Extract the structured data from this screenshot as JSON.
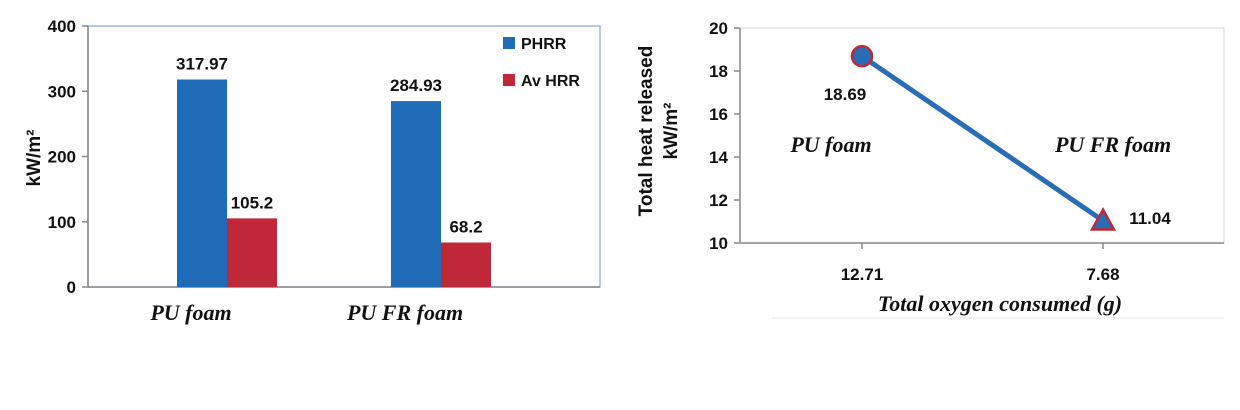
{
  "chart_data": [
    {
      "type": "bar",
      "categories": [
        "PU foam",
        "PU FR foam"
      ],
      "series": [
        {
          "name": "PHRR",
          "values": [
            317.97,
            284.93
          ],
          "color": "#1f6bb8"
        },
        {
          "name": "Av HRR",
          "values": [
            105.2,
            68.2
          ],
          "color": "#c0283a"
        }
      ],
      "data_labels": [
        [
          "317.97",
          "284.93"
        ],
        [
          "105.2",
          "68.2"
        ]
      ],
      "ylabel": "kW/m²",
      "ylim": [
        0,
        400
      ],
      "yticks": [
        0,
        100,
        200,
        300,
        400
      ],
      "grid": false,
      "legend_position": "top-right"
    },
    {
      "type": "line",
      "x": [
        "12.71",
        "7.68"
      ],
      "y": [
        18.69,
        11.04
      ],
      "point_labels": [
        "18.69",
        "11.04"
      ],
      "annotations": [
        "PU foam",
        "PU FR foam"
      ],
      "markers": [
        "circle",
        "triangle"
      ],
      "line_color": "#2a6db5",
      "marker_fill": [
        "#2a6db5",
        "#2a6db5"
      ],
      "marker_edge": "#c0283a",
      "ylabel_line1": "Total heat released",
      "ylabel_line2": "kW/m²",
      "xlabel": "Total oxygen consumed (g)",
      "ylim": [
        10,
        20
      ],
      "yticks": [
        10,
        12,
        14,
        16,
        18,
        20
      ],
      "grid": false
    }
  ]
}
